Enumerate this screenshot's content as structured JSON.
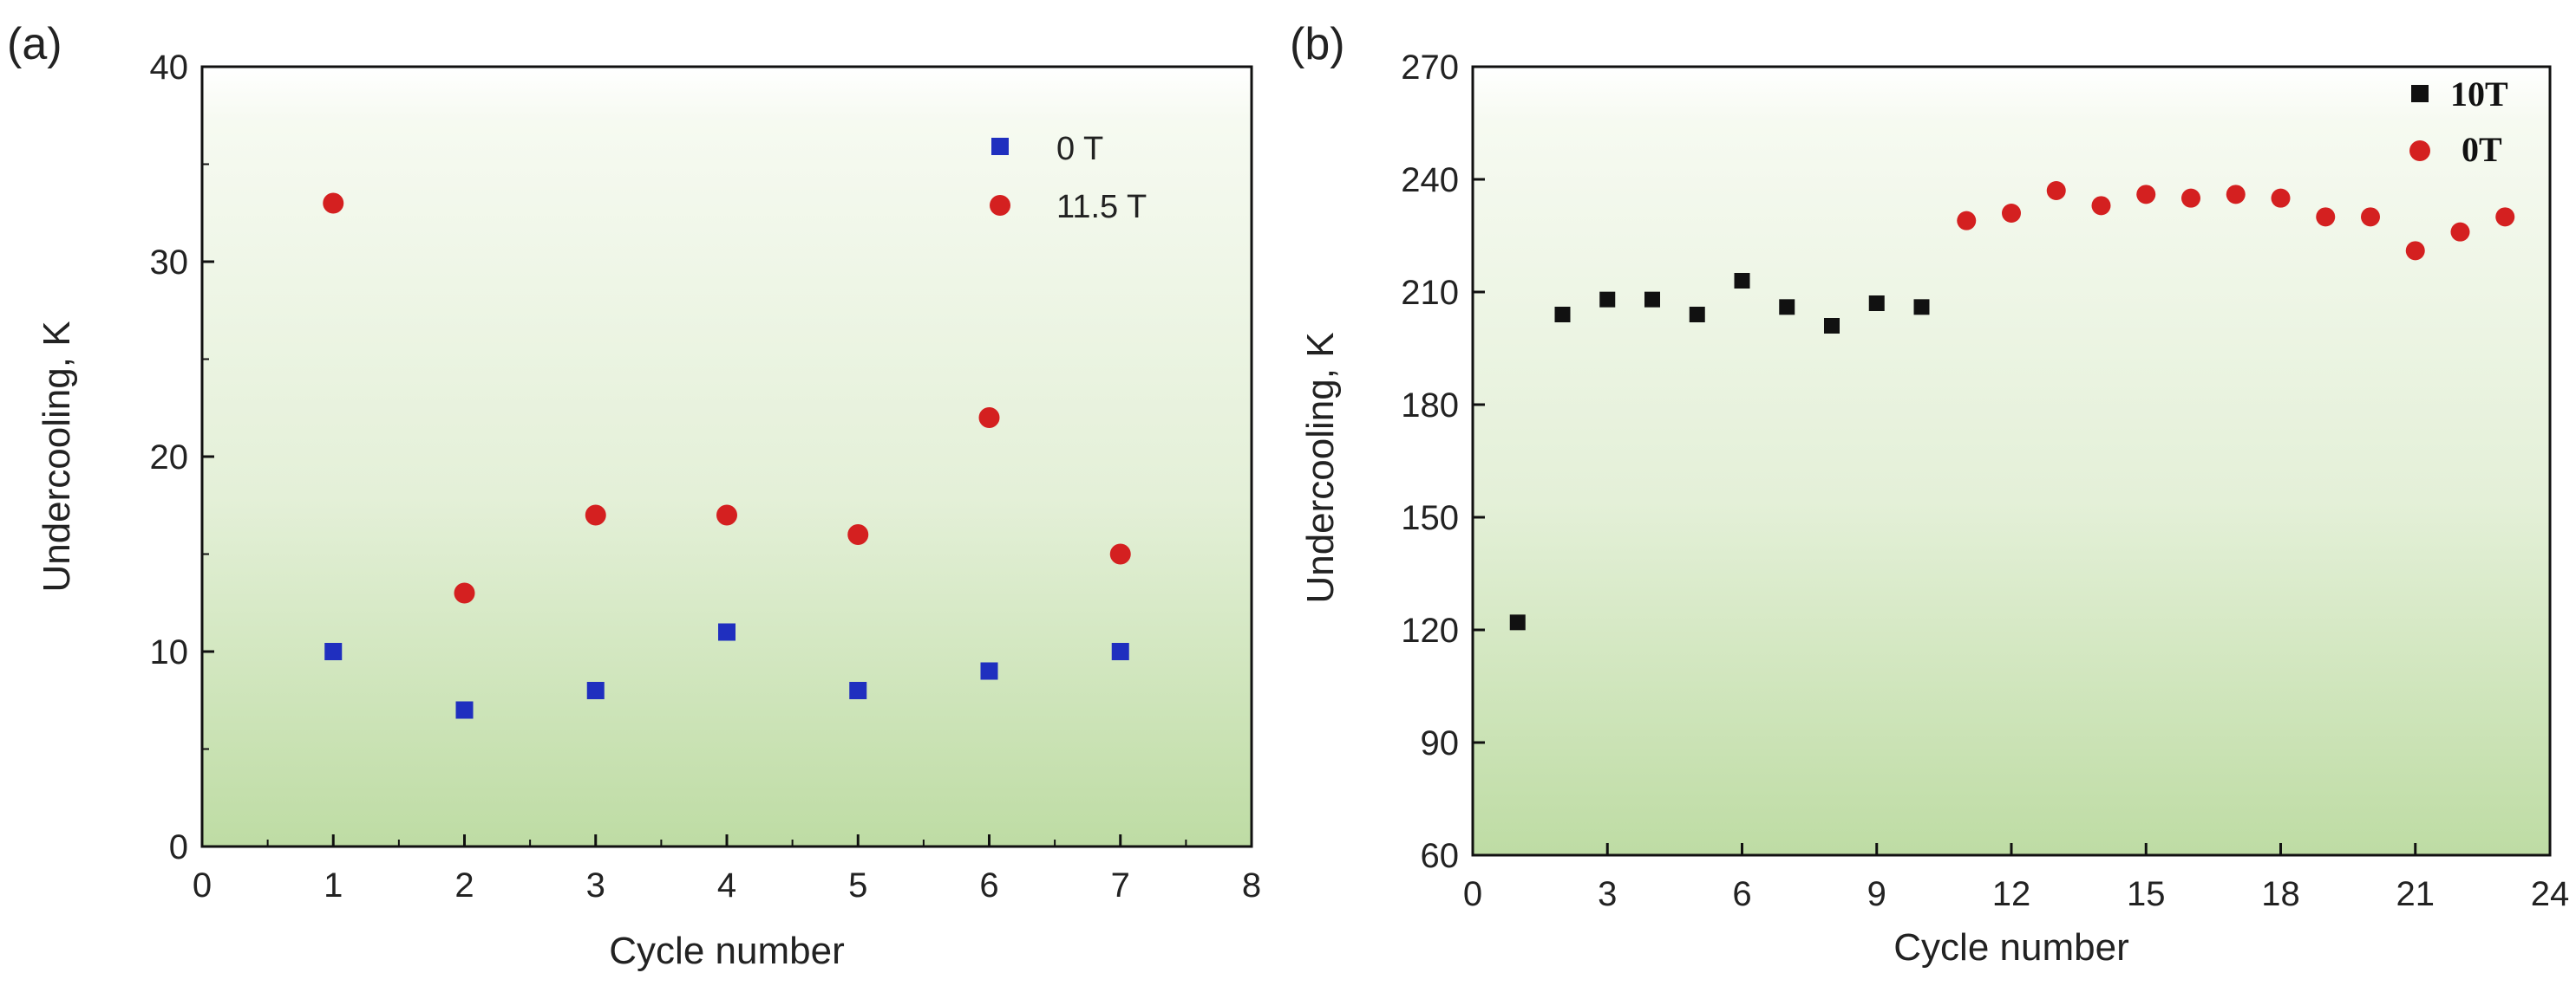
{
  "chart_data": [
    {
      "type": "scatter",
      "panel_label": "(a)",
      "xlabel": "Cycle number",
      "ylabel": "Undercooling, K",
      "xlim": [
        0,
        8
      ],
      "ylim": [
        0,
        40
      ],
      "xticks": [
        "0",
        "1",
        "2",
        "3",
        "4",
        "5",
        "6",
        "7",
        "8"
      ],
      "yticks": [
        "0",
        "10",
        "20",
        "30",
        "40"
      ],
      "legend_position": "top-right",
      "series": [
        {
          "name": "0 T",
          "marker": "square",
          "color": "#1f2fbf",
          "x": [
            1,
            2,
            3,
            4,
            5,
            6,
            7
          ],
          "y": [
            10,
            7,
            8,
            11,
            8,
            9,
            10
          ]
        },
        {
          "name": "11.5 T",
          "marker": "circle",
          "color": "#d42020",
          "x": [
            1,
            2,
            3,
            4,
            5,
            6,
            7
          ],
          "y": [
            33,
            13,
            17,
            17,
            16,
            22,
            15
          ]
        }
      ]
    },
    {
      "type": "scatter",
      "panel_label": "(b)",
      "xlabel": "Cycle number",
      "ylabel": "Undercooling, K",
      "xlim": [
        0,
        24
      ],
      "ylim": [
        60,
        270
      ],
      "xticks": [
        "0",
        "3",
        "6",
        "9",
        "12",
        "15",
        "18",
        "21",
        "24"
      ],
      "yticks": [
        "60",
        "90",
        "120",
        "150",
        "180",
        "210",
        "240",
        "270"
      ],
      "legend_position": "top-right",
      "series": [
        {
          "name": "10T",
          "marker": "square",
          "color": "#111111",
          "x": [
            1,
            2,
            3,
            4,
            5,
            6,
            7,
            8,
            9,
            10
          ],
          "y": [
            122,
            204,
            208,
            208,
            204,
            213,
            206,
            201,
            207,
            206
          ]
        },
        {
          "name": "0T",
          "marker": "circle",
          "color": "#d42020",
          "x": [
            11,
            12,
            13,
            14,
            15,
            16,
            17,
            18,
            19,
            20,
            21,
            22,
            23
          ],
          "y": [
            229,
            231,
            237,
            233,
            236,
            235,
            236,
            235,
            230,
            230,
            221,
            226,
            230
          ]
        }
      ]
    }
  ]
}
